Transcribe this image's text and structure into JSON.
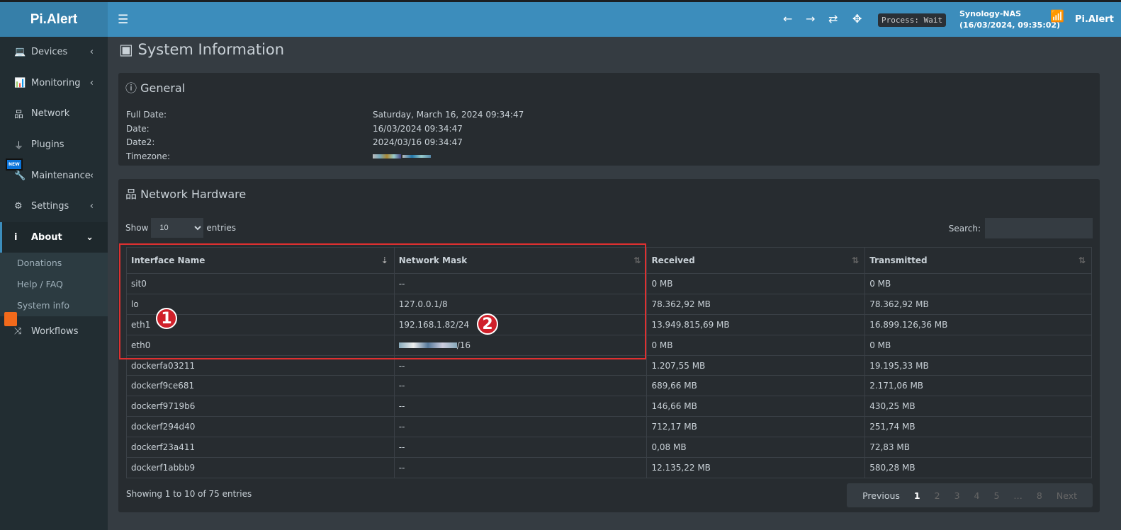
{
  "app": {
    "logo": "Pi.Alert"
  },
  "topbar": {
    "process": "Process: Wait",
    "host": "Synology-NAS",
    "host_time": "(16/03/2024, 09:35:02)",
    "user": "Pi.Alert",
    "icons": [
      "menu-icon",
      "arrow-left-icon",
      "arrow-right-icon",
      "refresh-icon",
      "move-icon",
      "router-icon"
    ]
  },
  "sidebar": {
    "items": [
      {
        "label": "Devices",
        "icon": "laptop-icon"
      },
      {
        "label": "Monitoring",
        "icon": "chart-icon"
      },
      {
        "label": "Network",
        "icon": "network-icon"
      },
      {
        "label": "Plugins",
        "icon": "plug-icon"
      },
      {
        "label": "Maintenance",
        "icon": "wrench-icon",
        "badge": "NEW"
      },
      {
        "label": "Settings",
        "icon": "gear-icon"
      },
      {
        "label": "About",
        "icon": "info-icon"
      }
    ],
    "sub": [
      "Donations",
      "Help / FAQ",
      "System info"
    ],
    "workflows": "Workflows"
  },
  "page": {
    "title": "System Information"
  },
  "general": {
    "title": "General",
    "rows": [
      {
        "k": "Full Date:",
        "v": "Saturday, March 16, 2024 09:34:47"
      },
      {
        "k": "Date:",
        "v": "16/03/2024 09:34:47"
      },
      {
        "k": "Date2:",
        "v": "2024/03/16 09:34:47"
      },
      {
        "k": "Timezone:",
        "v": ""
      }
    ]
  },
  "network": {
    "title": "Network Hardware",
    "show": "Show",
    "entries": "entries",
    "length": "10",
    "search": "Search:",
    "columns": [
      "Interface Name",
      "Network Mask",
      "Received",
      "Transmitted"
    ],
    "rows": [
      [
        "sit0",
        "--",
        "0 MB",
        "0 MB"
      ],
      [
        "lo",
        "127.0.0.1/8",
        "78.362,92 MB",
        "78.362,92 MB"
      ],
      [
        "eth1",
        "192.168.1.82/24",
        "13.949.815,69 MB",
        "16.899.126,36 MB"
      ],
      [
        "eth0",
        "/16",
        "0 MB",
        "0 MB"
      ],
      [
        "dockerfa03211",
        "--",
        "1.207,55 MB",
        "19.195,33 MB"
      ],
      [
        "dockerf9ce681",
        "--",
        "689,66 MB",
        "2.171,06 MB"
      ],
      [
        "dockerf9719b6",
        "--",
        "146,66 MB",
        "430,25 MB"
      ],
      [
        "dockerf294d40",
        "--",
        "712,17 MB",
        "251,74 MB"
      ],
      [
        "dockerf23a411",
        "--",
        "0,08 MB",
        "72,83 MB"
      ],
      [
        "dockerf1abbb9",
        "--",
        "12.135,22 MB",
        "580,28 MB"
      ]
    ],
    "info": "Showing 1 to 10 of 75 entries",
    "pagination": [
      "Previous",
      "1",
      "2",
      "3",
      "4",
      "5",
      "…",
      "8",
      "Next"
    ]
  },
  "annotations": [
    "1",
    "2"
  ]
}
